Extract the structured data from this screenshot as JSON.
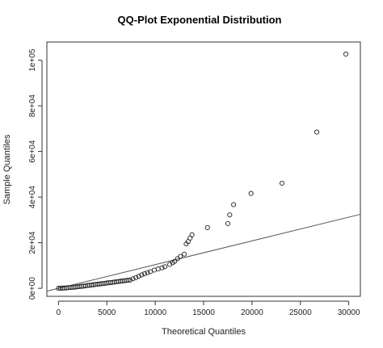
{
  "chart_data": {
    "type": "scatter",
    "title": "QQ-Plot Exponential Distribution",
    "xlabel": "Theoretical Quantiles",
    "ylabel": "Sample Quantiles",
    "xlim": [
      -1200,
      31200
    ],
    "ylim": [
      -3500,
      108000
    ],
    "x_ticks": [
      0,
      5000,
      10000,
      15000,
      20000,
      25000,
      30000
    ],
    "x_tick_labels": [
      "0",
      "5000",
      "10000",
      "15000",
      "20000",
      "25000",
      "30000"
    ],
    "y_ticks": [
      0,
      20000,
      40000,
      60000,
      80000,
      100000
    ],
    "y_tick_labels": [
      "0e+00",
      "2e+04",
      "4e+04",
      "6e+04",
      "8e+04",
      "1e+05"
    ],
    "grid": false,
    "reference_line": {
      "intercept": 0,
      "slope": 1.04
    },
    "points": [
      [
        0,
        0
      ],
      [
        200,
        50
      ],
      [
        400,
        100
      ],
      [
        600,
        150
      ],
      [
        800,
        200
      ],
      [
        1000,
        300
      ],
      [
        1200,
        350
      ],
      [
        1400,
        400
      ],
      [
        1600,
        500
      ],
      [
        1800,
        600
      ],
      [
        2000,
        700
      ],
      [
        2200,
        800
      ],
      [
        2400,
        900
      ],
      [
        2600,
        1000
      ],
      [
        2800,
        1100
      ],
      [
        3000,
        1250
      ],
      [
        3200,
        1350
      ],
      [
        3400,
        1450
      ],
      [
        3600,
        1550
      ],
      [
        3800,
        1700
      ],
      [
        4000,
        1800
      ],
      [
        4200,
        1900
      ],
      [
        4400,
        2000
      ],
      [
        4600,
        2100
      ],
      [
        4800,
        2200
      ],
      [
        5000,
        2350
      ],
      [
        5200,
        2450
      ],
      [
        5400,
        2550
      ],
      [
        5600,
        2650
      ],
      [
        5800,
        2750
      ],
      [
        6000,
        2900
      ],
      [
        6200,
        3000
      ],
      [
        6400,
        3100
      ],
      [
        6600,
        3200
      ],
      [
        6800,
        3350
      ],
      [
        7000,
        3450
      ],
      [
        7200,
        3550
      ],
      [
        7400,
        3650
      ],
      [
        7700,
        4200
      ],
      [
        8000,
        4700
      ],
      [
        8300,
        5300
      ],
      [
        8600,
        5900
      ],
      [
        8900,
        6400
      ],
      [
        9200,
        6900
      ],
      [
        9500,
        7300
      ],
      [
        9900,
        8000
      ],
      [
        10300,
        8500
      ],
      [
        10700,
        9000
      ],
      [
        11000,
        9500
      ],
      [
        11500,
        10500
      ],
      [
        11800,
        11200
      ],
      [
        12000,
        11800
      ],
      [
        12300,
        13000
      ],
      [
        12600,
        14000
      ],
      [
        13000,
        15000
      ],
      [
        13200,
        19500
      ],
      [
        13400,
        20500
      ],
      [
        13600,
        22000
      ],
      [
        13800,
        23500
      ],
      [
        15400,
        26600
      ],
      [
        17500,
        28400
      ],
      [
        17700,
        32200
      ],
      [
        18100,
        36700
      ],
      [
        19900,
        41600
      ],
      [
        23100,
        46100
      ],
      [
        26700,
        68500
      ],
      [
        29700,
        102700
      ]
    ]
  }
}
